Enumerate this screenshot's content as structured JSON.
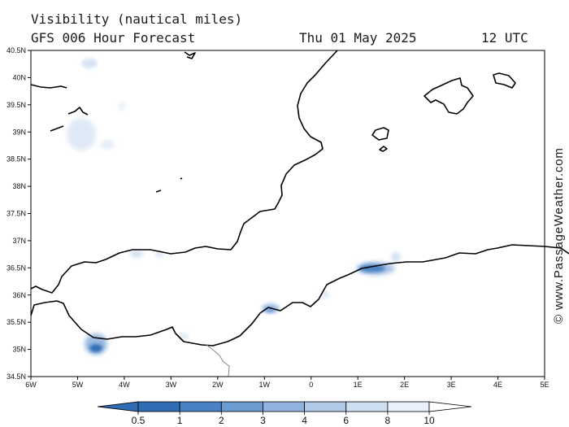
{
  "header": {
    "title": "Visibility (nautical miles)",
    "subtitle": "GFS 006 Hour Forecast",
    "date": "Thu 01 May 2025",
    "time": "12 UTC"
  },
  "axes": {
    "lat_labels": [
      "40.5N",
      "40N",
      "39.5N",
      "39N",
      "38.5N",
      "38N",
      "37.5N",
      "37N",
      "36.5N",
      "36N",
      "35.5N",
      "35N",
      "34.5N"
    ],
    "lon_labels": [
      "6W",
      "5W",
      "4W",
      "3W",
      "2W",
      "1W",
      "0",
      "1E",
      "2E",
      "3E",
      "4E",
      "5E"
    ]
  },
  "colorbar": {
    "labels": [
      "0.5",
      "1",
      "2",
      "3",
      "4",
      "6",
      "8",
      "10"
    ],
    "colors": [
      "#2f6db5",
      "#4a82c4",
      "#6c9bd2",
      "#8fb3de",
      "#b0c9e8",
      "#cfdff2",
      "#e8f0fa",
      "#ffffff"
    ]
  },
  "credit": "© www.PassageWeather.com"
}
